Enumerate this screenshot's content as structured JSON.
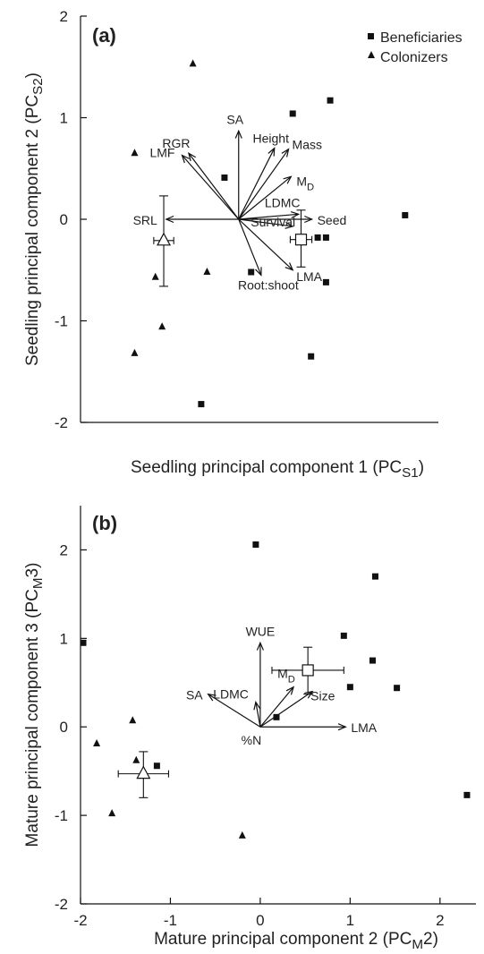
{
  "chart_data": [
    {
      "panel_label": "(a)",
      "type": "scatter",
      "xlabel": "Seedling principal component 1 (PC",
      "xlabel_sub": "S1",
      "xlabel_tail": ")",
      "ylabel": "Seedling principal component 2 (PC",
      "ylabel_sub": "S2",
      "ylabel_tail": ")",
      "xlim": [
        -1.9,
        2.4
      ],
      "ylim": [
        -2,
        2
      ],
      "xticks": [],
      "yticks": [
        -2,
        -1,
        0,
        1,
        2
      ],
      "ytick_labels": [
        "-2",
        "-1",
        "0",
        "1",
        "2"
      ],
      "legend": {
        "position": "top-right",
        "entries": [
          {
            "label": "Beneficiaries",
            "marker": "square"
          },
          {
            "label": "Colonizers",
            "marker": "triangle"
          }
        ]
      },
      "series": [
        {
          "name": "Beneficiaries",
          "marker": "square",
          "points": [
            [
              0.65,
              1.04
            ],
            [
              1.1,
              1.17
            ],
            [
              -0.17,
              0.41
            ],
            [
              2.0,
              0.04
            ],
            [
              0.95,
              -0.18
            ],
            [
              1.05,
              -0.18
            ],
            [
              0.15,
              -0.52
            ],
            [
              1.05,
              -0.62
            ],
            [
              0.87,
              -1.35
            ],
            [
              -0.45,
              -1.82
            ]
          ]
        },
        {
          "name": "Colonizers",
          "marker": "triangle",
          "points": [
            [
              -0.55,
              1.53
            ],
            [
              -1.25,
              0.65
            ],
            [
              -1.0,
              -0.57
            ],
            [
              -0.38,
              -0.52
            ],
            [
              -0.92,
              -1.06
            ],
            [
              -1.25,
              -1.32
            ]
          ]
        }
      ],
      "centroids": [
        {
          "group": "Colonizers",
          "marker": "open-triangle",
          "x": -0.9,
          "y": -0.21,
          "x_err": 0.12,
          "y_err_lo": 0.45,
          "y_err_hi": 0.44
        },
        {
          "group": "Beneficiaries",
          "marker": "open-square",
          "x": 0.75,
          "y": -0.2,
          "x_err": 0.13,
          "y_err_lo": 0.27,
          "y_err_hi": 0.29
        }
      ],
      "vectors": [
        {
          "label": "SA",
          "x": 0,
          "y": 0.87
        },
        {
          "label": "RGR",
          "x": -0.6,
          "y": 0.65
        },
        {
          "label": "LMF",
          "x": -0.68,
          "y": 0.63
        },
        {
          "label": "Height",
          "x": 0.43,
          "y": 0.7
        },
        {
          "label": "Mass",
          "x": 0.6,
          "y": 0.69
        },
        {
          "label": "M",
          "sub": "D",
          "x": 0.63,
          "y": 0.42
        },
        {
          "label": "LDMC",
          "x": 0.72,
          "y": 0.05
        },
        {
          "label": "Seed",
          "x": 0.88,
          "y": 0.0
        },
        {
          "label": "Survival",
          "x": 0.65,
          "y": -0.07
        },
        {
          "label": "SRL",
          "x": -0.87,
          "y": 0.0
        },
        {
          "label": "LMA",
          "x": 0.65,
          "y": -0.5
        },
        {
          "label": "Root:shoot",
          "x": 0.27,
          "y": -0.55
        }
      ]
    },
    {
      "panel_label": "(b)",
      "type": "scatter",
      "xlabel": "Mature principal component 2 (PC",
      "xlabel_sub": "M",
      "xlabel_tail": "2)",
      "ylabel": "Mature principal component 3 (PC",
      "ylabel_sub": "M",
      "ylabel_tail": "3)",
      "xlim": [
        -2,
        2.4
      ],
      "ylim": [
        -2,
        2.5
      ],
      "xticks": [
        -2,
        -1,
        0,
        1,
        2
      ],
      "xtick_labels": [
        "-2",
        "-1",
        "0",
        "1",
        "2"
      ],
      "yticks": [
        -2,
        -1,
        0,
        1,
        2
      ],
      "ytick_labels": [
        "-2",
        "-1",
        "0",
        "1",
        "2"
      ],
      "series": [
        {
          "name": "Beneficiaries",
          "marker": "square",
          "points": [
            [
              -0.05,
              2.06
            ],
            [
              1.28,
              1.7
            ],
            [
              -1.97,
              0.95
            ],
            [
              0.93,
              1.03
            ],
            [
              1.25,
              0.75
            ],
            [
              1.0,
              0.45
            ],
            [
              1.52,
              0.44
            ],
            [
              0.18,
              0.11
            ],
            [
              -1.15,
              -0.44
            ],
            [
              2.3,
              -0.77
            ]
          ]
        },
        {
          "name": "Colonizers",
          "marker": "triangle",
          "points": [
            [
              -1.42,
              0.07
            ],
            [
              -1.38,
              -0.38
            ],
            [
              -1.82,
              -0.19
            ],
            [
              -1.65,
              -0.98
            ],
            [
              -0.2,
              -1.23
            ]
          ]
        }
      ],
      "centroids": [
        {
          "group": "Colonizers",
          "marker": "open-triangle",
          "x": -1.3,
          "y": -0.53,
          "x_err": 0.28,
          "y_err_lo": 0.27,
          "y_err_hi": 0.25
        },
        {
          "group": "Beneficiaries",
          "marker": "open-square",
          "x": 0.53,
          "y": 0.64,
          "x_err": 0.4,
          "y_err_lo": 0.27,
          "y_err_hi": 0.26
        }
      ],
      "vectors": [
        {
          "label": "WUE",
          "x": 0,
          "y": 0.95
        },
        {
          "label": "SA",
          "x": -0.58,
          "y": 0.37
        },
        {
          "label": "LDMC",
          "x": -0.05,
          "y": 0.28
        },
        {
          "label": "M",
          "sub": "D",
          "x": 0.37,
          "y": 0.45
        },
        {
          "label": "Size",
          "x": 0.58,
          "y": 0.4
        },
        {
          "label": "LMA",
          "x": 0.95,
          "y": 0.0
        },
        {
          "label": "%N",
          "x": 0,
          "y": 0
        }
      ]
    }
  ]
}
